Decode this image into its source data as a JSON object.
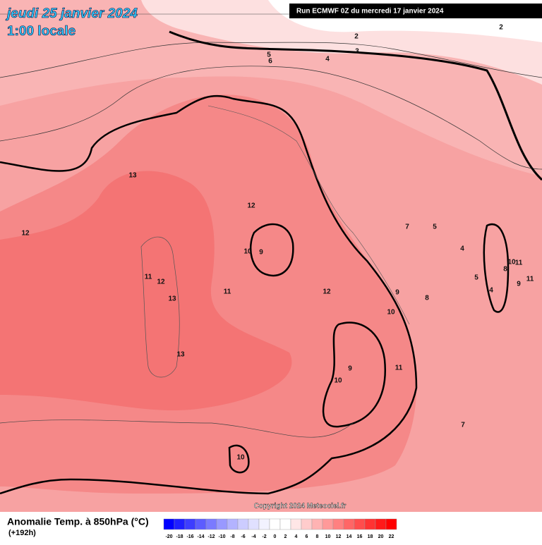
{
  "header": {
    "title": "jeudi 25 janvier 2024",
    "subtitle": "1:00 locale",
    "run": "Run ECMWF 0Z du mercredi 17 janvier 2024"
  },
  "contour_labels": [
    "2",
    "3",
    "4",
    "5",
    "6",
    "2",
    "13",
    "12",
    "12",
    "10",
    "9",
    "11",
    "12",
    "13",
    "11",
    "12",
    "9",
    "10",
    "8",
    "13",
    "9",
    "10",
    "11",
    "7",
    "5",
    "4",
    "5",
    "4",
    "8",
    "10",
    "11",
    "9",
    "11",
    "7",
    "10"
  ],
  "copyright": "Copyright 2024 Meteociel.fr",
  "legend": {
    "title": "Anomalie Temp. à 850hPa (°C)",
    "lead": "(+192h)",
    "ticks": [
      -20,
      -18,
      -16,
      -14,
      -12,
      -10,
      -8,
      -6,
      -4,
      -2,
      0,
      2,
      4,
      6,
      8,
      10,
      12,
      14,
      16,
      18,
      20,
      22
    ],
    "colors": [
      "#0000ff",
      "#1f1fff",
      "#3d3dff",
      "#5c5cff",
      "#7a7aff",
      "#9999ff",
      "#b3b3ff",
      "#ccccff",
      "#e0e0ff",
      "#f2f2ff",
      "#ffffff",
      "#ffffff",
      "#ffe6e6",
      "#ffcccc",
      "#ffb3b3",
      "#ff9999",
      "#ff8080",
      "#ff6666",
      "#ff4d4d",
      "#ff3333",
      "#ff1a1a",
      "#ff0000"
    ]
  }
}
